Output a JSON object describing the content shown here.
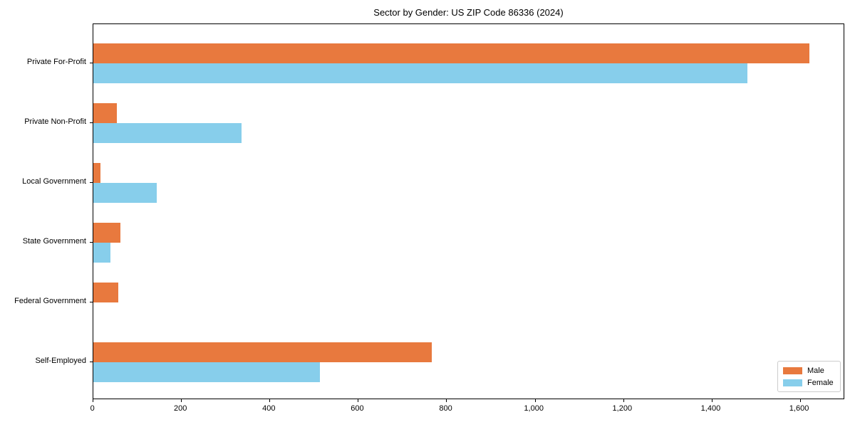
{
  "chart_data": {
    "type": "bar",
    "orientation": "horizontal",
    "title": "Sector by Gender: US ZIP Code 86336 (2024)",
    "categories": [
      "Private For-Profit",
      "Private Non-Profit",
      "Local Government",
      "State Government",
      "Federal Government",
      "Self-Employed"
    ],
    "series": [
      {
        "name": "Male",
        "color": "#e8793e",
        "values": [
          1620,
          53,
          16,
          62,
          57,
          765
        ]
      },
      {
        "name": "Female",
        "color": "#87ceeb",
        "values": [
          1480,
          335,
          143,
          38,
          0,
          512
        ]
      }
    ],
    "xlabel": "",
    "ylabel": "",
    "xlim": [
      0,
      1700
    ],
    "x_ticks": [
      0,
      200,
      400,
      600,
      800,
      1000,
      1200,
      1400,
      1600
    ],
    "x_tick_labels": [
      "0",
      "200",
      "400",
      "600",
      "800",
      "1,000",
      "1,200",
      "1,400",
      "1,600"
    ],
    "grid": false,
    "legend_position": "lower right",
    "axis_color": "#000000",
    "background_color": "#ffffff"
  }
}
